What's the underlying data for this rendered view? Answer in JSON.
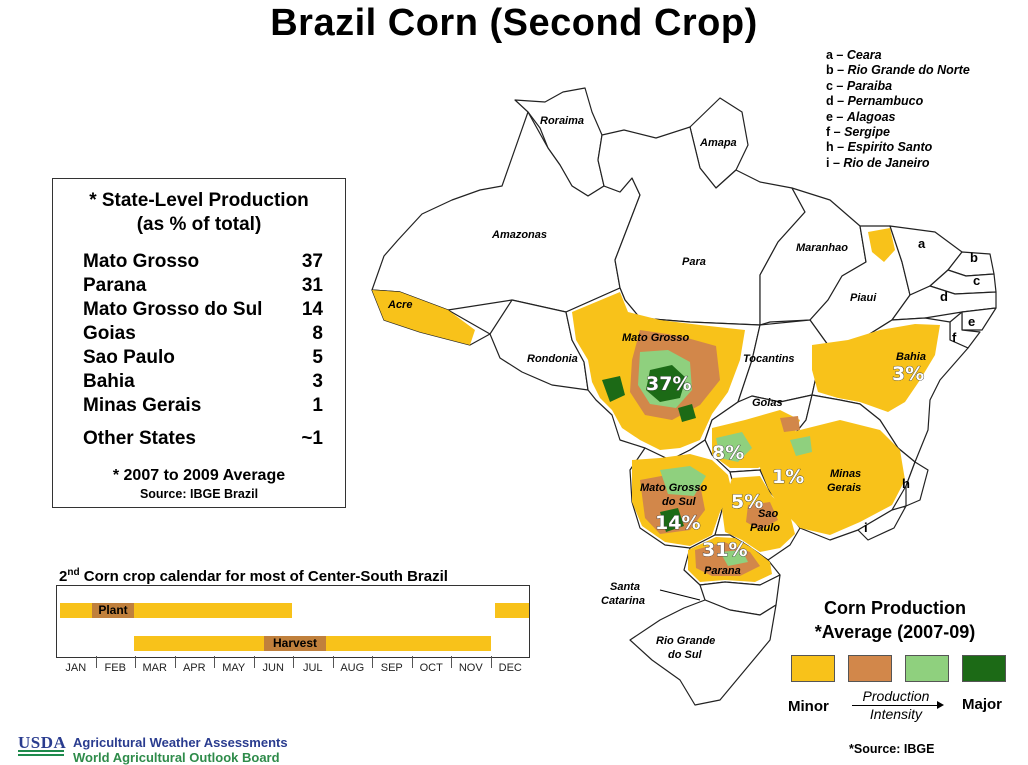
{
  "title": "Brazil Corn (Second Crop)",
  "state_key": [
    {
      "letter": "a",
      "name": "Ceara"
    },
    {
      "letter": "b",
      "name": "Rio Grande do Norte"
    },
    {
      "letter": "c",
      "name": "Paraiba"
    },
    {
      "letter": "d",
      "name": "Pernambuco"
    },
    {
      "letter": "e",
      "name": "Alagoas"
    },
    {
      "letter": "f",
      "name": "Sergipe"
    },
    {
      "letter": "h",
      "name": "Espirito Santo"
    },
    {
      "letter": "i",
      "name": "Rio de Janeiro"
    }
  ],
  "production_table": {
    "title_line1": "* State-Level Production",
    "title_line2": "(as % of total)",
    "rows": [
      {
        "state": "Mato Grosso",
        "value": "37"
      },
      {
        "state": "Parana",
        "value": "31"
      },
      {
        "state": "Mato Grosso do Sul",
        "value": "14"
      },
      {
        "state": "Goias",
        "value": "8"
      },
      {
        "state": "Sao Paulo",
        "value": "5"
      },
      {
        "state": "Bahia",
        "value": "3"
      },
      {
        "state": "Minas Gerais",
        "value": "1"
      },
      {
        "state": "Other States",
        "value": "~1"
      }
    ],
    "footnote": "* 2007 to 2009 Average",
    "source": "Source: IBGE Brazil"
  },
  "calendar": {
    "title_prefix": "2",
    "title_sup": "nd",
    "title_rest": " Corn crop calendar for most of Center-South Brazil",
    "plant_label": "Plant",
    "harvest_label": "Harvest",
    "months": [
      "JAN",
      "FEB",
      "MAR",
      "APR",
      "MAY",
      "JUN",
      "JUL",
      "AUG",
      "SEP",
      "OCT",
      "NOV",
      "DEC"
    ]
  },
  "map_labels": {
    "roraima": "Roraima",
    "amapa": "Amapa",
    "amazonas": "Amazonas",
    "para": "Para",
    "maranhao": "Maranhao",
    "piaui": "Piaui",
    "acre": "Acre",
    "rondonia": "Rondonia",
    "mato_grosso": "Mato Grosso",
    "tocantins": "Tocantins",
    "bahia": "Bahia",
    "goias": "Goias",
    "minas_gerais_1": "Minas",
    "minas_gerais_2": "Gerais",
    "mgs_1": "Mato Grosso",
    "mgs_2": "do Sul",
    "sao_paulo_1": "Sao",
    "sao_paulo_2": "Paulo",
    "parana": "Parana",
    "santa_catarina_1": "Santa",
    "santa_catarina_2": "Catarina",
    "rgs_1": "Rio Grande",
    "rgs_2": "do Sul"
  },
  "map_percentages": {
    "mato_grosso": "37%",
    "bahia": "3%",
    "goias": "8%",
    "minas_gerais": "1%",
    "sao_paulo": "5%",
    "mato_grosso_do_sul": "14%",
    "parana": "31%"
  },
  "legend": {
    "title_line1": "Corn Production",
    "title_line2": "*Average (2007-09)",
    "minor_label": "Minor",
    "major_label": "Major",
    "intensity_line1": "Production",
    "intensity_line2": "Intensity",
    "colors": [
      "#f8c21a",
      "#d2874a",
      "#8fd07e",
      "#1c6a16"
    ]
  },
  "source_note": "*Source: IBGE",
  "footer": {
    "usda": "USDA",
    "line1": "Agricultural Weather Assessments",
    "line2": "World Agricultural Outlook Board"
  }
}
